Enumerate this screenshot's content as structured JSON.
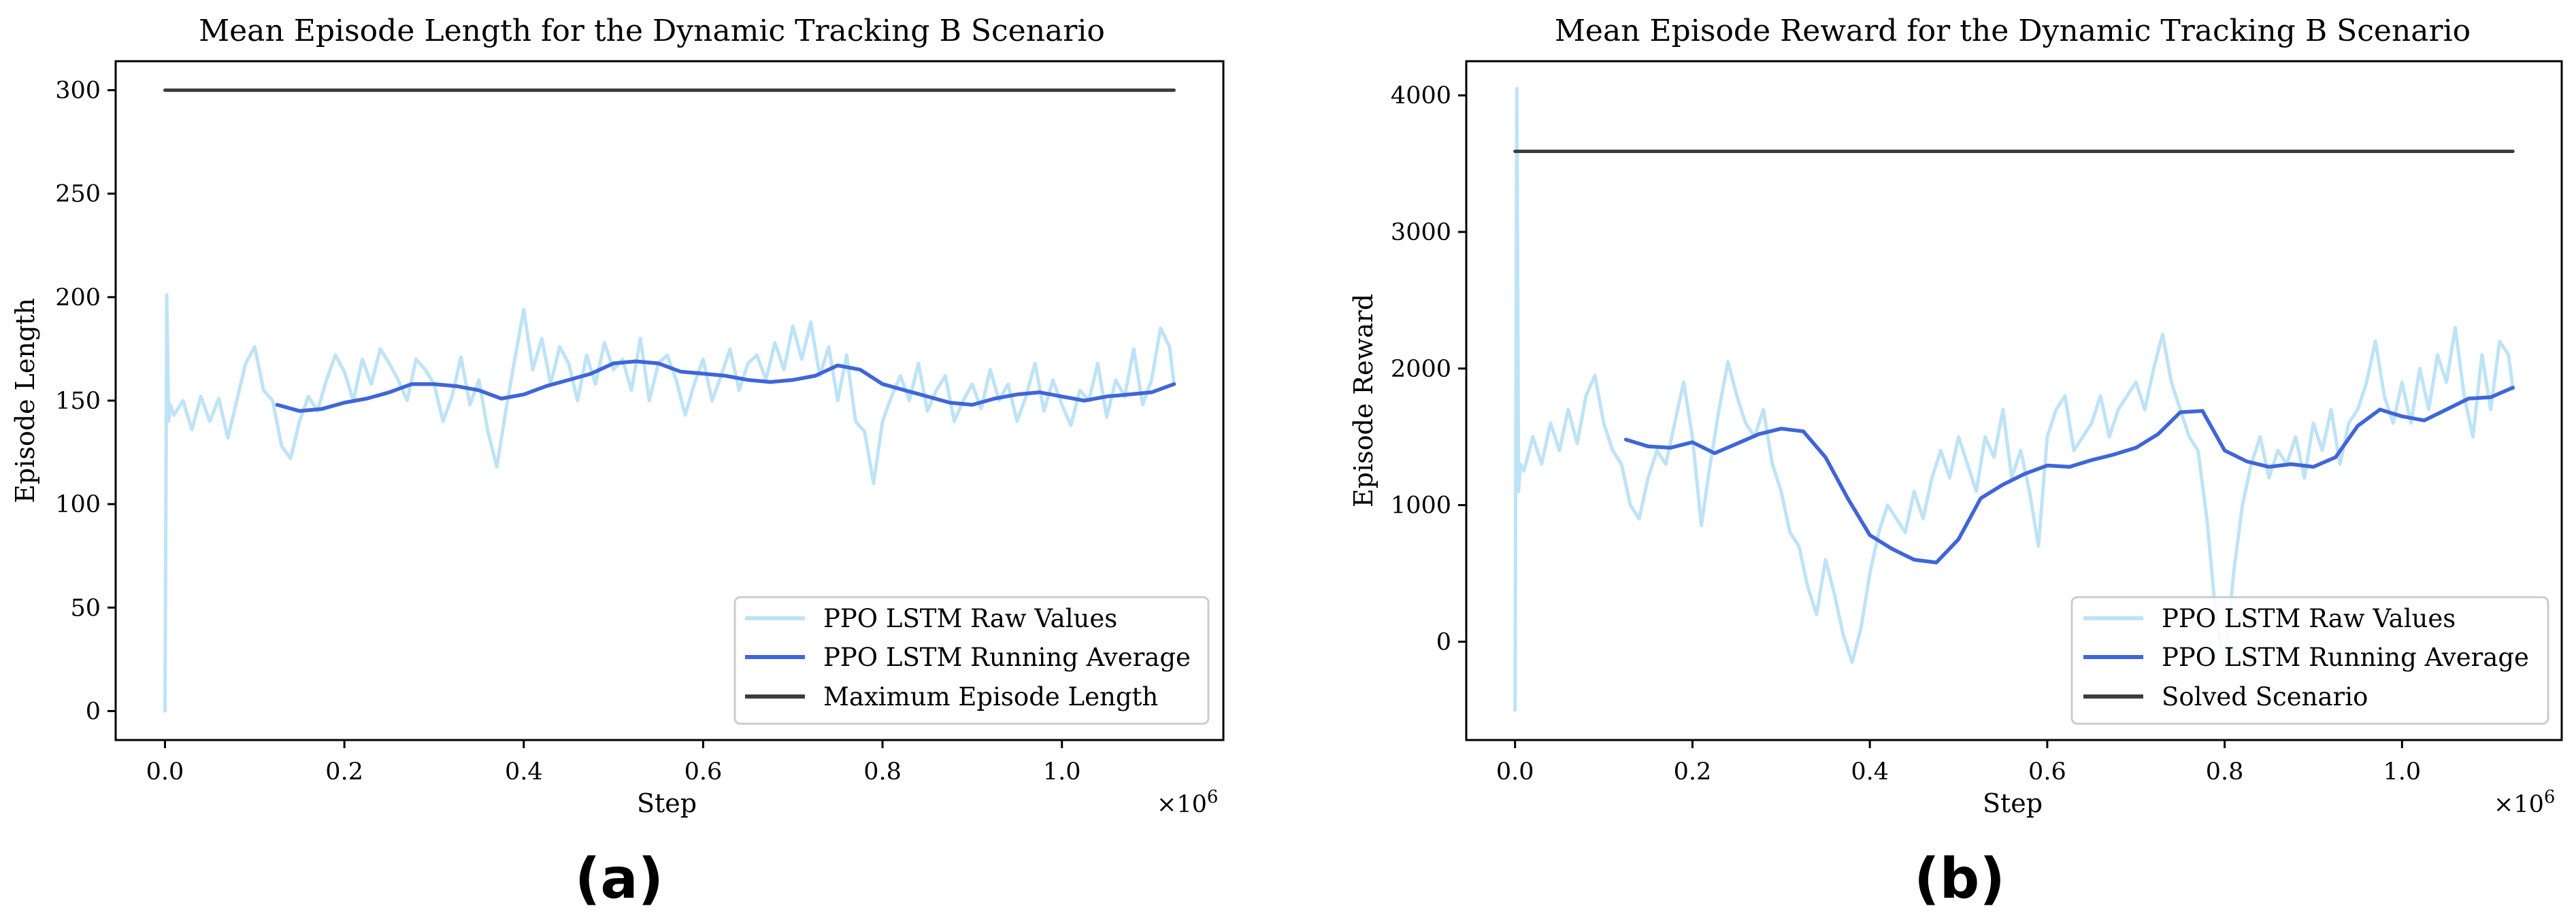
{
  "colors": {
    "raw": "#bde3f7",
    "avg": "#3f66d8",
    "ref": "#3c3c3c"
  },
  "chart_data": [
    {
      "id": "a",
      "type": "line",
      "title": "Mean Episode Length for the Dynamic Tracking B Scenario",
      "xlabel": "Step",
      "ylabel": "Episode Length",
      "x_multiplier": "×10",
      "x_multiplier_exp": "6",
      "xlim": [
        -0.055,
        1.18
      ],
      "ylim": [
        -14,
        314
      ],
      "xticks": [
        0.0,
        0.2,
        0.4,
        0.6,
        0.8,
        1.0
      ],
      "xtick_labels": [
        "0.0",
        "0.2",
        "0.4",
        "0.6",
        "0.8",
        "1.0"
      ],
      "yticks": [
        0,
        50,
        100,
        150,
        200,
        250,
        300
      ],
      "ytick_labels": [
        "0",
        "50",
        "100",
        "150",
        "200",
        "250",
        "300"
      ],
      "legend_position": "lower-right",
      "sub_label": "(a)",
      "series": [
        {
          "name": "PPO LSTM Raw Values",
          "role": "raw",
          "x": [
            0.0,
            0.002,
            0.004,
            0.006,
            0.01,
            0.02,
            0.03,
            0.04,
            0.05,
            0.06,
            0.07,
            0.08,
            0.09,
            0.1,
            0.11,
            0.12,
            0.13,
            0.14,
            0.15,
            0.16,
            0.17,
            0.18,
            0.19,
            0.2,
            0.21,
            0.22,
            0.23,
            0.24,
            0.25,
            0.26,
            0.27,
            0.28,
            0.29,
            0.3,
            0.31,
            0.32,
            0.33,
            0.34,
            0.35,
            0.36,
            0.37,
            0.38,
            0.39,
            0.4,
            0.41,
            0.42,
            0.43,
            0.44,
            0.45,
            0.46,
            0.47,
            0.48,
            0.49,
            0.5,
            0.51,
            0.52,
            0.53,
            0.54,
            0.55,
            0.56,
            0.57,
            0.58,
            0.59,
            0.6,
            0.61,
            0.62,
            0.63,
            0.64,
            0.65,
            0.66,
            0.67,
            0.68,
            0.69,
            0.7,
            0.71,
            0.72,
            0.73,
            0.74,
            0.75,
            0.76,
            0.77,
            0.78,
            0.79,
            0.8,
            0.81,
            0.82,
            0.83,
            0.84,
            0.85,
            0.86,
            0.87,
            0.88,
            0.89,
            0.9,
            0.91,
            0.92,
            0.93,
            0.94,
            0.95,
            0.96,
            0.97,
            0.98,
            0.99,
            1.0,
            1.01,
            1.02,
            1.03,
            1.04,
            1.05,
            1.06,
            1.07,
            1.08,
            1.09,
            1.1,
            1.11,
            1.12,
            1.125
          ],
          "values": [
            0,
            201,
            140,
            148,
            143,
            150,
            136,
            152,
            140,
            151,
            132,
            150,
            168,
            176,
            155,
            150,
            128,
            122,
            140,
            152,
            145,
            160,
            172,
            164,
            150,
            170,
            158,
            175,
            168,
            160,
            150,
            170,
            165,
            158,
            140,
            152,
            171,
            148,
            160,
            135,
            118,
            145,
            170,
            194,
            165,
            180,
            158,
            176,
            168,
            150,
            172,
            158,
            178,
            165,
            170,
            155,
            180,
            150,
            168,
            172,
            160,
            143,
            158,
            170,
            150,
            162,
            175,
            155,
            168,
            172,
            160,
            178,
            165,
            186,
            170,
            188,
            162,
            176,
            150,
            172,
            140,
            135,
            110,
            140,
            152,
            162,
            150,
            168,
            145,
            155,
            162,
            140,
            150,
            158,
            146,
            165,
            150,
            158,
            140,
            152,
            168,
            145,
            160,
            148,
            138,
            155,
            150,
            168,
            142,
            160,
            152,
            175,
            148,
            160,
            185,
            176,
            158
          ]
        },
        {
          "name": "PPO LSTM Running Average",
          "role": "avg",
          "x": [
            0.125,
            0.15,
            0.175,
            0.2,
            0.225,
            0.25,
            0.275,
            0.3,
            0.325,
            0.35,
            0.375,
            0.4,
            0.425,
            0.45,
            0.475,
            0.5,
            0.525,
            0.55,
            0.575,
            0.6,
            0.625,
            0.65,
            0.675,
            0.7,
            0.725,
            0.75,
            0.775,
            0.8,
            0.825,
            0.85,
            0.875,
            0.9,
            0.925,
            0.95,
            0.975,
            1.0,
            1.025,
            1.05,
            1.075,
            1.1,
            1.125
          ],
          "values": [
            148,
            145,
            146,
            149,
            151,
            154,
            158,
            158,
            157,
            155,
            151,
            153,
            157,
            160,
            163,
            168,
            169,
            168,
            164,
            163,
            162,
            160,
            159,
            160,
            162,
            167,
            165,
            158,
            155,
            152,
            149,
            148,
            151,
            153,
            154,
            152,
            150,
            152,
            153,
            154,
            158
          ]
        },
        {
          "name": "Maximum Episode Length",
          "role": "ref",
          "x": [
            0.0,
            1.125
          ],
          "values": [
            300,
            300
          ]
        }
      ]
    },
    {
      "id": "b",
      "type": "line",
      "title": "Mean Episode Reward for the Dynamic Tracking B Scenario",
      "xlabel": "Step",
      "ylabel": "Episode Reward",
      "x_multiplier": "×10",
      "x_multiplier_exp": "6",
      "xlim": [
        -0.055,
        1.18
      ],
      "ylim": [
        -720,
        4250
      ],
      "xticks": [
        0.0,
        0.2,
        0.4,
        0.6,
        0.8,
        1.0
      ],
      "xtick_labels": [
        "0.0",
        "0.2",
        "0.4",
        "0.6",
        "0.8",
        "1.0"
      ],
      "yticks": [
        0,
        1000,
        2000,
        3000,
        4000
      ],
      "ytick_labels": [
        "0",
        "1000",
        "2000",
        "3000",
        "4000"
      ],
      "legend_position": "lower-right",
      "sub_label": "(b)",
      "series": [
        {
          "name": "PPO LSTM Raw Values",
          "role": "raw",
          "x": [
            0.0,
            0.002,
            0.004,
            0.006,
            0.01,
            0.02,
            0.03,
            0.04,
            0.05,
            0.06,
            0.07,
            0.08,
            0.09,
            0.1,
            0.11,
            0.12,
            0.13,
            0.14,
            0.15,
            0.16,
            0.17,
            0.18,
            0.19,
            0.2,
            0.21,
            0.22,
            0.23,
            0.24,
            0.25,
            0.26,
            0.27,
            0.28,
            0.29,
            0.3,
            0.31,
            0.32,
            0.33,
            0.34,
            0.35,
            0.36,
            0.37,
            0.38,
            0.39,
            0.4,
            0.41,
            0.42,
            0.43,
            0.44,
            0.45,
            0.46,
            0.47,
            0.48,
            0.49,
            0.5,
            0.51,
            0.52,
            0.53,
            0.54,
            0.55,
            0.56,
            0.57,
            0.58,
            0.59,
            0.6,
            0.61,
            0.62,
            0.63,
            0.64,
            0.65,
            0.66,
            0.67,
            0.68,
            0.69,
            0.7,
            0.71,
            0.72,
            0.73,
            0.74,
            0.75,
            0.76,
            0.77,
            0.78,
            0.79,
            0.8,
            0.81,
            0.82,
            0.83,
            0.84,
            0.85,
            0.86,
            0.87,
            0.88,
            0.89,
            0.9,
            0.91,
            0.92,
            0.93,
            0.94,
            0.95,
            0.96,
            0.97,
            0.98,
            0.99,
            1.0,
            1.01,
            1.02,
            1.03,
            1.04,
            1.05,
            1.06,
            1.07,
            1.08,
            1.09,
            1.1,
            1.11,
            1.12,
            1.125
          ],
          "values": [
            -500,
            4050,
            1100,
            1300,
            1250,
            1500,
            1300,
            1600,
            1400,
            1700,
            1450,
            1800,
            1950,
            1600,
            1400,
            1300,
            1000,
            900,
            1200,
            1400,
            1300,
            1600,
            1900,
            1500,
            850,
            1300,
            1700,
            2050,
            1800,
            1600,
            1500,
            1700,
            1300,
            1100,
            800,
            700,
            400,
            200,
            600,
            350,
            50,
            -150,
            100,
            500,
            800,
            1000,
            900,
            800,
            1100,
            900,
            1200,
            1400,
            1200,
            1500,
            1300,
            1100,
            1500,
            1350,
            1700,
            1200,
            1400,
            1100,
            700,
            1500,
            1700,
            1800,
            1400,
            1500,
            1600,
            1800,
            1500,
            1700,
            1800,
            1900,
            1700,
            2000,
            2250,
            1900,
            1700,
            1500,
            1400,
            900,
            200,
            -200,
            500,
            1000,
            1300,
            1500,
            1200,
            1400,
            1300,
            1500,
            1200,
            1600,
            1400,
            1700,
            1300,
            1600,
            1700,
            1900,
            2200,
            1800,
            1600,
            1900,
            1600,
            2000,
            1700,
            2100,
            1900,
            2300,
            1800,
            1500,
            2100,
            1700,
            2200,
            2100,
            1850
          ]
        },
        {
          "name": "PPO LSTM Running Average",
          "role": "avg",
          "x": [
            0.125,
            0.15,
            0.175,
            0.2,
            0.225,
            0.25,
            0.275,
            0.3,
            0.325,
            0.35,
            0.375,
            0.4,
            0.425,
            0.45,
            0.475,
            0.5,
            0.525,
            0.55,
            0.575,
            0.6,
            0.625,
            0.65,
            0.675,
            0.7,
            0.725,
            0.75,
            0.775,
            0.8,
            0.825,
            0.85,
            0.875,
            0.9,
            0.925,
            0.95,
            0.975,
            1.0,
            1.025,
            1.05,
            1.075,
            1.1,
            1.125
          ],
          "values": [
            1480,
            1430,
            1420,
            1460,
            1380,
            1450,
            1520,
            1560,
            1540,
            1350,
            1050,
            780,
            680,
            600,
            580,
            750,
            1050,
            1150,
            1230,
            1290,
            1280,
            1330,
            1370,
            1420,
            1520,
            1680,
            1690,
            1400,
            1320,
            1280,
            1300,
            1280,
            1350,
            1580,
            1700,
            1650,
            1620,
            1700,
            1780,
            1790,
            1860
          ]
        },
        {
          "name": "Solved Scenario",
          "role": "ref",
          "x": [
            0.0,
            1.125
          ],
          "values": [
            3590,
            3590
          ]
        }
      ]
    }
  ]
}
